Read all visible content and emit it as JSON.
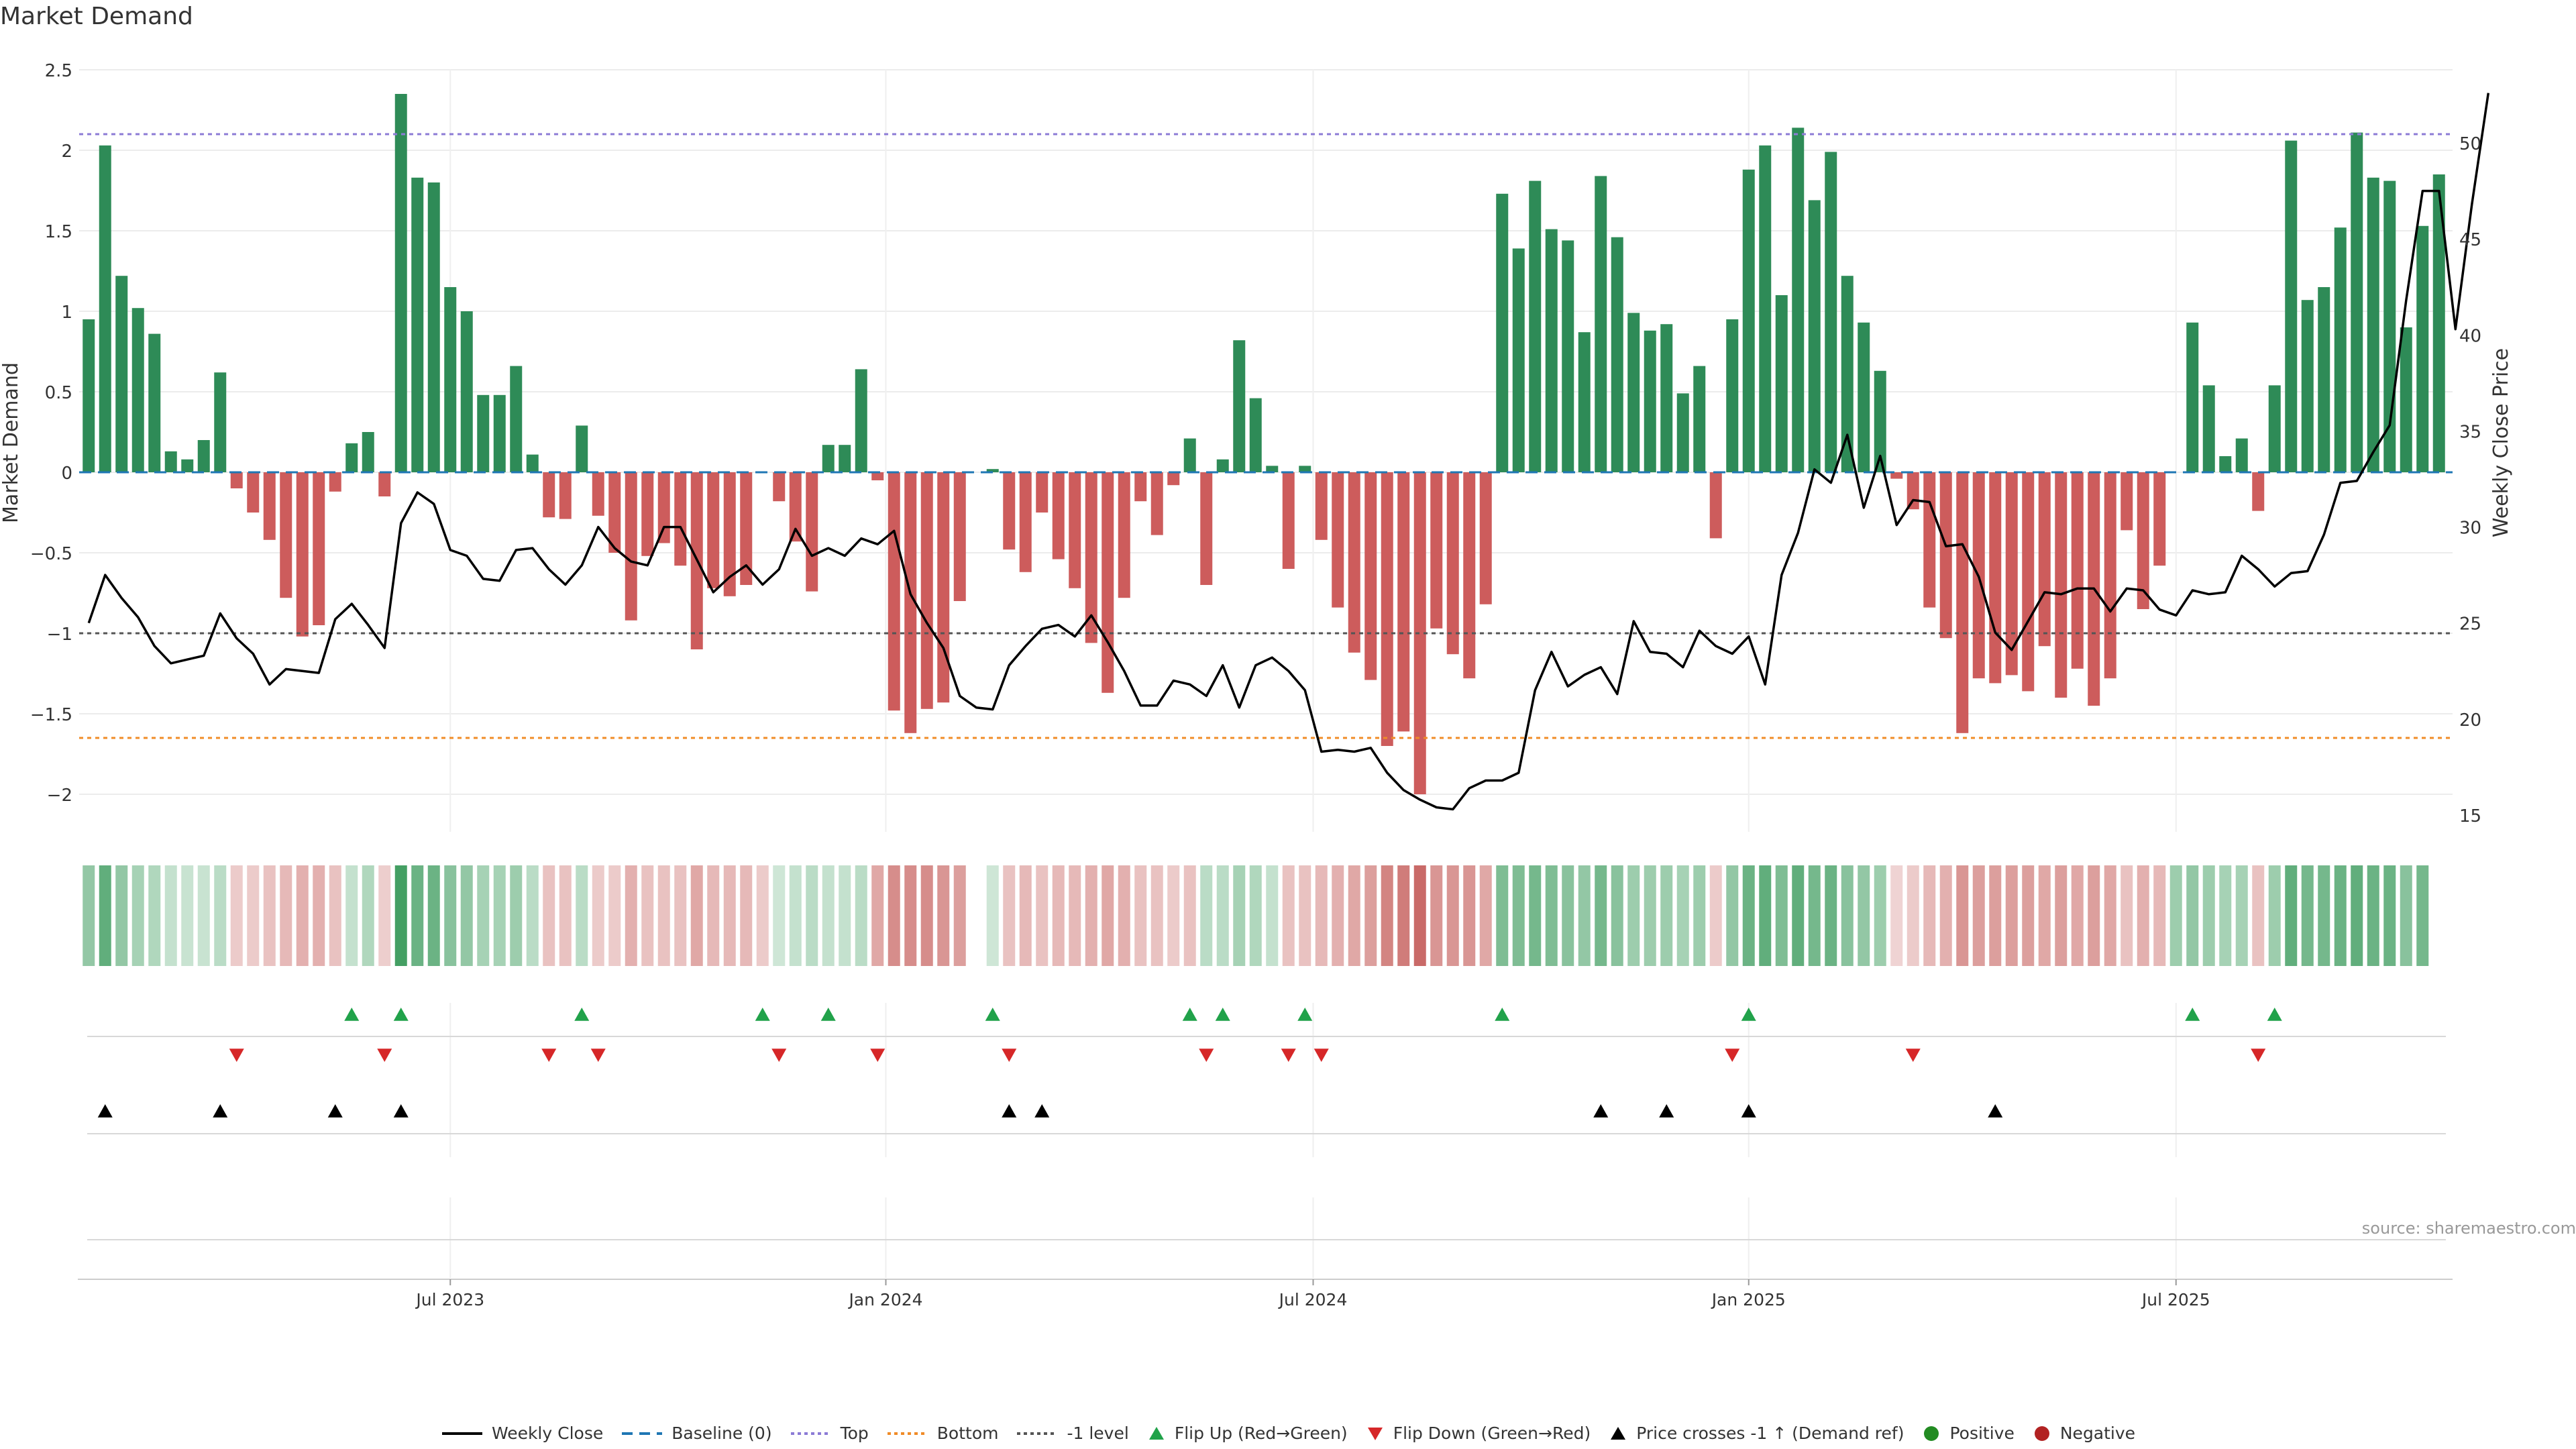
{
  "title": "Market Demand",
  "source": "source: sharemaestro.com",
  "colors": {
    "positive": "#2e8b57",
    "negative": "#cd5c5c",
    "close": "#000000",
    "top": "#8c7bd6",
    "bottom": "#f08c28",
    "minus1": "#555555",
    "baseline": "#1f77b4",
    "flip_up": "#21a24a",
    "flip_down": "#d62728",
    "cross": "#000000",
    "heat_pos": "#3a9a5b",
    "heat_neg": "#c0504d"
  },
  "legend": [
    {
      "key": "close",
      "label": "Weekly Close"
    },
    {
      "key": "baseline",
      "label": "Baseline (0)"
    },
    {
      "key": "top",
      "label": "Top"
    },
    {
      "key": "bottom",
      "label": "Bottom"
    },
    {
      "key": "minus1",
      "label": "-1 level"
    },
    {
      "key": "flip_up",
      "label": "Flip Up (Red→Green)"
    },
    {
      "key": "flip_down",
      "label": "Flip Down (Green→Red)"
    },
    {
      "key": "cross",
      "label": "Price crosses -1 ↑ (Demand ref)"
    },
    {
      "key": "positive",
      "label": "Positive"
    },
    {
      "key": "negative",
      "label": "Negative"
    }
  ],
  "chart_data": {
    "type": "bar",
    "title": "Market Demand",
    "ylabel": "Market Demand",
    "y2label": "Weekly Close Price",
    "ylim": [
      -2.25,
      2.5
    ],
    "y2lim": [
      13,
      53.4
    ],
    "yticks": [
      "2.5",
      "2",
      "1.5",
      "1",
      "0.5",
      "0",
      "−0.5",
      "−1",
      "−1.5",
      "−2"
    ],
    "ytick_values": [
      2.5,
      2,
      1.5,
      1,
      0.5,
      0,
      -0.5,
      -1,
      -1.5,
      -2
    ],
    "y2ticks": [
      "50",
      "45",
      "40",
      "35",
      "30",
      "25",
      "20",
      "15"
    ],
    "y2tick_values": [
      50,
      45,
      40,
      35,
      30,
      25,
      20,
      15
    ],
    "xticks": [
      "Jul 2023",
      "Jan 2024",
      "Jul 2024",
      "Jan 2025",
      "Jul 2025"
    ],
    "xtick_weeks": [
      22,
      48.5,
      74.5,
      101,
      127
    ],
    "levels": {
      "top": 2.1,
      "bottom": -1.65,
      "minus1": -1.0,
      "baseline": 0
    },
    "demand": [
      0.95,
      2.03,
      1.22,
      1.02,
      0.86,
      0.13,
      0.08,
      0.2,
      0.62,
      -0.1,
      -0.25,
      -0.42,
      -0.78,
      -1.02,
      -0.95,
      -0.12,
      0.18,
      0.25,
      -0.15,
      2.35,
      1.83,
      1.8,
      1.15,
      1.0,
      0.48,
      0.48,
      0.66,
      0.11,
      -0.28,
      -0.29,
      0.29,
      -0.27,
      -0.5,
      -0.92,
      -0.52,
      -0.44,
      -0.58,
      -1.1,
      -0.72,
      -0.77,
      -0.7,
      0.0,
      -0.18,
      -0.43,
      -0.74,
      0.17,
      0.17,
      0.64,
      -0.05,
      -1.48,
      -1.62,
      -1.47,
      -1.43,
      -0.8,
      0.0,
      0.02,
      -0.48,
      -0.62,
      -0.25,
      -0.54,
      -0.72,
      -1.06,
      -1.37,
      -0.78,
      -0.18,
      -0.39,
      -0.08,
      0.21,
      -0.7,
      0.08,
      0.82,
      0.46,
      0.04,
      -0.6,
      0.04,
      -0.42,
      -0.84,
      -1.12,
      -1.29,
      -1.7,
      -1.61,
      -2.0,
      -0.97,
      -1.13,
      -1.28,
      -0.82,
      1.73,
      1.39,
      1.81,
      1.51,
      1.44,
      0.87,
      1.84,
      1.46,
      0.99,
      0.88,
      0.92,
      0.49,
      0.66,
      -0.41,
      0.95,
      1.88,
      2.03,
      1.1,
      2.14,
      1.69,
      1.99,
      1.22,
      0.93,
      0.63,
      -0.04,
      -0.23,
      -0.84,
      -1.03,
      -1.62,
      -1.28,
      -1.31,
      -1.26,
      -1.36,
      -1.08,
      -1.4,
      -1.22,
      -1.45,
      -1.28,
      -0.36,
      -0.85,
      -0.58,
      0.0,
      0.93,
      0.54,
      0.1,
      0.21,
      -0.24,
      0.54,
      2.06,
      1.07,
      1.15,
      1.52,
      2.11,
      1.83,
      1.81,
      0.9,
      1.53,
      1.85
    ],
    "close": [
      25,
      27.5,
      26.3,
      25.3,
      23.8,
      22.9,
      23.1,
      23.3,
      25.5,
      24.2,
      23.4,
      21.8,
      22.6,
      22.5,
      22.4,
      25.2,
      26,
      24.9,
      23.7,
      30.2,
      31.8,
      31.2,
      28.8,
      28.5,
      27.3,
      27.2,
      28.8,
      28.9,
      27.8,
      27,
      28,
      30,
      28.9,
      28.2,
      28,
      30,
      30,
      28.3,
      26.6,
      27.4,
      28,
      27,
      27.8,
      29.9,
      28.5,
      28.9,
      28.5,
      29.4,
      29.1,
      29.8,
      26.5,
      25,
      23.7,
      21.2,
      20.6,
      20.5,
      22.8,
      23.8,
      24.7,
      24.9,
      24.3,
      25.4,
      24,
      22.5,
      20.7,
      20.7,
      22,
      21.8,
      21.2,
      22.8,
      20.6,
      22.8,
      23.2,
      22.5,
      21.5,
      18.3,
      18.4,
      18.3,
      18.5,
      17.2,
      16.3,
      15.8,
      15.4,
      15.3,
      16.4,
      16.8,
      16.8,
      17.2,
      21.5,
      23.5,
      21.7,
      22.3,
      22.7,
      21.3,
      25.1,
      23.5,
      23.4,
      22.7,
      24.6,
      23.8,
      23.4,
      24.3,
      21.8,
      27.5,
      29.7,
      33,
      32.3,
      34.8,
      31,
      33.7,
      30.1,
      31.4,
      31.3,
      29,
      29.1,
      27.4,
      24.5,
      23.6,
      25.1,
      26.6,
      26.5,
      26.8,
      26.8,
      25.6,
      26.8,
      26.7,
      25.7,
      25.4,
      26.7,
      26.5,
      26.6,
      28.5,
      27.8,
      26.9,
      27.6,
      27.7,
      29.6,
      32.3,
      32.4,
      33.9,
      35.3,
      41.8,
      47.5,
      47.5,
      40.3,
      46.8,
      52.6
    ],
    "heat_sign": [
      1,
      1,
      1,
      1,
      1,
      1,
      1,
      1,
      1,
      -1,
      -1,
      -1,
      -1,
      -1,
      -1,
      -1,
      1,
      1,
      -1,
      1,
      1,
      1,
      1,
      1,
      1,
      1,
      1,
      1,
      -1,
      -1,
      1,
      -1,
      -1,
      -1,
      -1,
      -1,
      -1,
      -1,
      -1,
      -1,
      -1,
      -1,
      1,
      1,
      1,
      1,
      1,
      1,
      -1,
      -1,
      -1,
      -1,
      -1,
      -1,
      0,
      1,
      -1,
      -1,
      -1,
      -1,
      -1,
      -1,
      -1,
      -1,
      -1,
      -1,
      -1,
      -1,
      1,
      1,
      1,
      1,
      1,
      -1,
      -1,
      -1,
      -1,
      -1,
      -1,
      -1,
      -1,
      -1,
      -1,
      -1,
      -1,
      -1,
      1,
      1,
      1,
      1,
      1,
      1,
      1,
      1,
      1,
      1,
      1,
      1,
      1,
      -1,
      1,
      1,
      1,
      1,
      1,
      1,
      1,
      1,
      1,
      1,
      -1,
      -1,
      -1,
      -1,
      -1,
      -1,
      -1,
      -1,
      -1,
      -1,
      -1,
      -1,
      -1,
      -1,
      -1,
      -1,
      -1,
      1,
      1,
      1,
      1,
      1,
      -1,
      1,
      1,
      1,
      1,
      1,
      1,
      1,
      1,
      1,
      1
    ],
    "heat_intensity": [
      0.55,
      0.8,
      0.55,
      0.45,
      0.4,
      0.3,
      0.28,
      0.28,
      0.35,
      0.3,
      0.3,
      0.35,
      0.4,
      0.45,
      0.45,
      0.35,
      0.3,
      0.4,
      0.28,
      0.95,
      0.75,
      0.75,
      0.6,
      0.55,
      0.45,
      0.45,
      0.5,
      0.35,
      0.35,
      0.35,
      0.35,
      0.3,
      0.3,
      0.45,
      0.35,
      0.35,
      0.35,
      0.5,
      0.4,
      0.4,
      0.4,
      0.3,
      0.25,
      0.3,
      0.35,
      0.3,
      0.3,
      0.35,
      0.5,
      0.65,
      0.65,
      0.65,
      0.6,
      0.55,
      0,
      0.25,
      0.35,
      0.4,
      0.35,
      0.4,
      0.4,
      0.45,
      0.5,
      0.45,
      0.35,
      0.35,
      0.3,
      0.35,
      0.35,
      0.35,
      0.45,
      0.4,
      0.3,
      0.35,
      0.35,
      0.4,
      0.45,
      0.5,
      0.55,
      0.7,
      0.75,
      0.85,
      0.6,
      0.6,
      0.6,
      0.5,
      0.65,
      0.65,
      0.7,
      0.65,
      0.6,
      0.55,
      0.7,
      0.6,
      0.5,
      0.5,
      0.5,
      0.45,
      0.5,
      0.3,
      0.55,
      0.75,
      0.8,
      0.65,
      0.8,
      0.7,
      0.75,
      0.6,
      0.55,
      0.5,
      0.25,
      0.3,
      0.4,
      0.45,
      0.6,
      0.55,
      0.55,
      0.55,
      0.55,
      0.5,
      0.55,
      0.5,
      0.55,
      0.5,
      0.35,
      0.45,
      0.4,
      0.5,
      0.55,
      0.5,
      0.45,
      0.45,
      0.35,
      0.5,
      0.8,
      0.7,
      0.7,
      0.75,
      0.8,
      0.75,
      0.75,
      0.6,
      0.7,
      0.7
    ],
    "flip_up_weeks": [
      16,
      19,
      30,
      41,
      45,
      55,
      67,
      69,
      74,
      86,
      101,
      128,
      133
    ],
    "flip_down_weeks": [
      9,
      18,
      28,
      31,
      42,
      48,
      56,
      68,
      73,
      75,
      100,
      111,
      132
    ],
    "cross_weeks": [
      1,
      8,
      15,
      19,
      56,
      58,
      92,
      96,
      101,
      116
    ]
  }
}
